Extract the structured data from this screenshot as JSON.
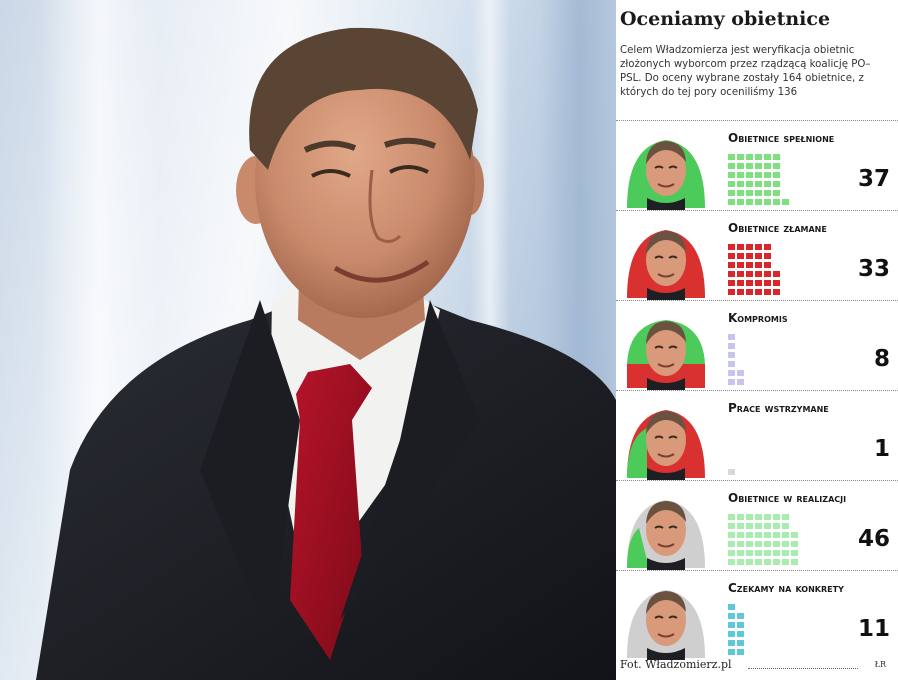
{
  "infographic": {
    "title": "Oceniamy obietnice",
    "intro": "Celem Władzomierza jest weryfikacja obietnic złożonych wyborcom przez rządzącą koalicję PO–PSL. Do oceny wybrane zostały 164 obietnice, z których do tej pory oceniliśmy 136",
    "categories": [
      {
        "label": "Obietnice spełnione",
        "count": "37",
        "value": 37,
        "icon": "face-green-icon",
        "color": "#4ccb5a",
        "square_color": "#7ee07f"
      },
      {
        "label": "Obietnice złamane",
        "count": "33",
        "value": 33,
        "icon": "face-red-icon",
        "color": "#d93030",
        "square_color": "#d9262a"
      },
      {
        "label": "Kompromis",
        "count": "8",
        "value": 8,
        "icon": "face-compromise-icon",
        "color": "#4ccb5a",
        "square_color": "#c7c5ec"
      },
      {
        "label": "Prace wstrzymane",
        "count": "1",
        "value": 1,
        "icon": "face-halted-icon",
        "color": "#d93030",
        "square_color": "#d8d8d8"
      },
      {
        "label": "Obietnice w realizacji",
        "count": "46",
        "value": 46,
        "icon": "face-in-progress-icon",
        "color": "#4ccb5a",
        "square_color": "#a9ecb0"
      },
      {
        "label": "Czekamy na konkrety",
        "count": "11",
        "value": 11,
        "icon": "face-waiting-icon",
        "color": "#cfcfcf",
        "square_color": "#5ec8da"
      }
    ],
    "credit": "Fot. Władzomierz.pl",
    "signature": "ŁR"
  }
}
